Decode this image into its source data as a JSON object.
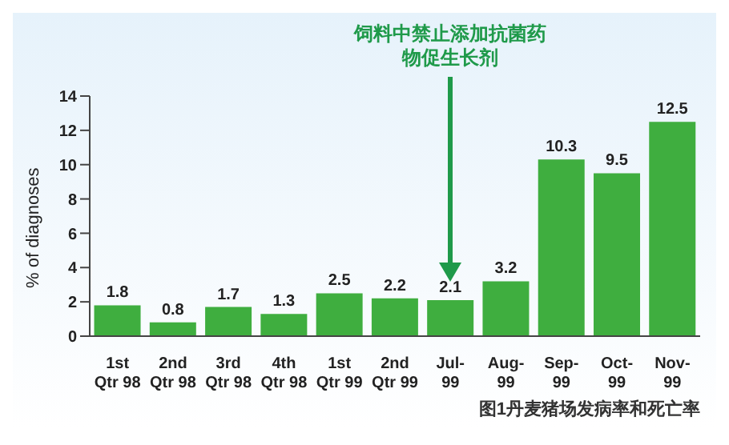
{
  "chart_data": {
    "type": "bar",
    "ylabel": "% of diagnoses",
    "categories": [
      "1st Qtr 98",
      "2nd Qtr 98",
      "3rd Qtr 98",
      "4th Qtr 98",
      "1st Qtr 99",
      "2nd Qtr 99",
      "Jul-99",
      "Aug-99",
      "Sep-99",
      "Oct-99",
      "Nov-99"
    ],
    "values": [
      1.8,
      0.8,
      1.7,
      1.3,
      2.5,
      2.2,
      2.1,
      3.2,
      10.3,
      9.5,
      12.5
    ],
    "color": "#3fae3f",
    "ylim": [
      0,
      14
    ],
    "yticks": [
      0,
      2,
      4,
      6,
      8,
      10,
      12,
      14
    ],
    "grid": false,
    "data_labels": true,
    "annotations": [
      "饲料中禁止添加抗菌药物促生长剂",
      "图1丹麦猪场发病率和死亡率"
    ]
  }
}
